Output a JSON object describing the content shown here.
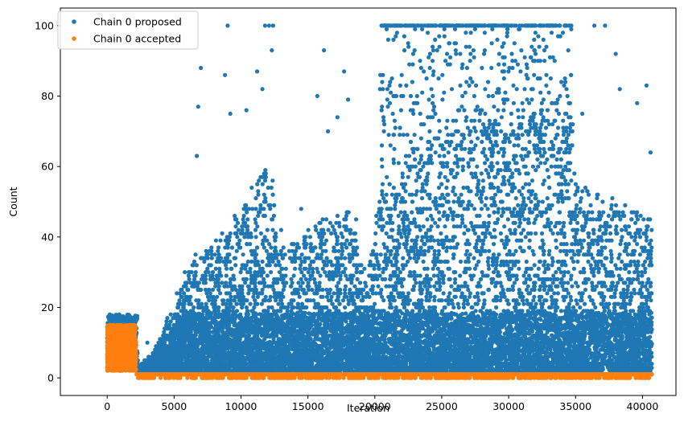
{
  "chart_data": {
    "type": "scatter",
    "title": "",
    "xlabel": "Iteration",
    "ylabel": "Count",
    "xlim": [
      -3500,
      42500
    ],
    "ylim": [
      -5,
      105
    ],
    "xticks": [
      0,
      5000,
      10000,
      15000,
      20000,
      25000,
      30000,
      35000,
      40000
    ],
    "yticks": [
      0,
      20,
      40,
      60,
      80,
      100
    ],
    "grid": false,
    "legend_position": "top-left",
    "series": [
      {
        "name": "Chain 0 proposed",
        "color": "#1f77b4",
        "x_range": [
          0,
          40700
        ],
        "points": [
          [
            200,
            18
          ],
          [
            900,
            18
          ],
          [
            1500,
            17
          ],
          [
            2000,
            17
          ],
          [
            3000,
            10
          ],
          [
            4500,
            17
          ],
          [
            5200,
            24
          ],
          [
            5800,
            30
          ],
          [
            6600,
            35
          ],
          [
            6700,
            63
          ],
          [
            6800,
            77
          ],
          [
            7000,
            88
          ],
          [
            8800,
            86
          ],
          [
            9000,
            100
          ],
          [
            9200,
            75
          ],
          [
            10400,
            76
          ],
          [
            11200,
            87
          ],
          [
            11600,
            82
          ],
          [
            11800,
            100
          ],
          [
            12100,
            100
          ],
          [
            12300,
            93
          ],
          [
            12400,
            100
          ],
          [
            13000,
            42
          ],
          [
            14500,
            48
          ],
          [
            15700,
            80
          ],
          [
            16200,
            93
          ],
          [
            16500,
            70
          ],
          [
            17200,
            74
          ],
          [
            17700,
            87
          ],
          [
            18000,
            79
          ],
          [
            18600,
            45
          ],
          [
            20500,
            100
          ],
          [
            21000,
            96
          ],
          [
            21500,
            100
          ],
          [
            22300,
            100
          ],
          [
            23200,
            100
          ],
          [
            24000,
            100
          ],
          [
            25300,
            100
          ],
          [
            26100,
            100
          ],
          [
            26800,
            98
          ],
          [
            27500,
            100
          ],
          [
            28200,
            100
          ],
          [
            29000,
            100
          ],
          [
            29700,
            100
          ],
          [
            30400,
            100
          ],
          [
            31500,
            100
          ],
          [
            32000,
            98
          ],
          [
            33100,
            100
          ],
          [
            33800,
            100
          ],
          [
            34500,
            100
          ],
          [
            35500,
            75
          ],
          [
            36400,
            100
          ],
          [
            37200,
            100
          ],
          [
            38000,
            92
          ],
          [
            38300,
            82
          ],
          [
            39600,
            78
          ],
          [
            40300,
            83
          ],
          [
            40600,
            64
          ]
        ]
      },
      {
        "name": "Chain 0 accepted",
        "color": "#ff7f0e",
        "x_range": [
          0,
          40700
        ],
        "points": [
          [
            0,
            3
          ],
          [
            200,
            14
          ],
          [
            400,
            7
          ],
          [
            600,
            12
          ],
          [
            800,
            4
          ],
          [
            1000,
            15
          ],
          [
            1200,
            9
          ],
          [
            1400,
            13
          ],
          [
            1600,
            5
          ],
          [
            1800,
            11
          ],
          [
            2000,
            14
          ],
          [
            2200,
            1
          ],
          [
            5000,
            1
          ],
          [
            10000,
            1
          ],
          [
            15000,
            1
          ],
          [
            20000,
            1
          ],
          [
            25000,
            0
          ],
          [
            30000,
            0
          ],
          [
            35000,
            1
          ],
          [
            40000,
            1
          ]
        ]
      }
    ]
  }
}
